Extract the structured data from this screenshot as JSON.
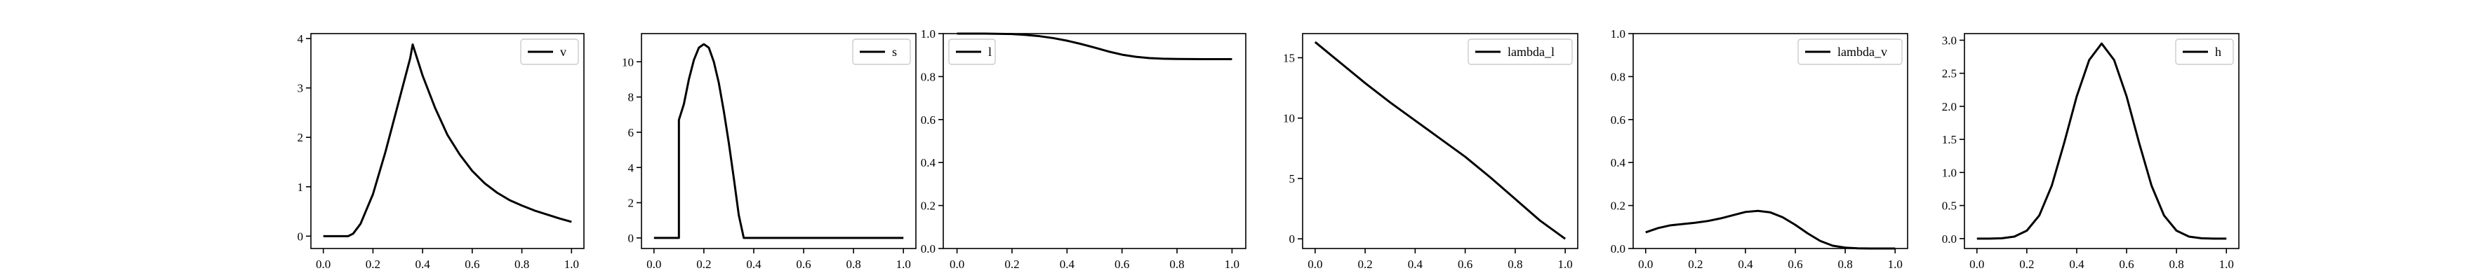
{
  "figure": {
    "background": "#ffffff",
    "line_color": "#000000"
  },
  "chart_data": [
    {
      "type": "line",
      "legend": "v",
      "legend_position": "upper right",
      "xlim": [
        -0.05,
        1.05
      ],
      "ylim": [
        -0.25,
        4.1
      ],
      "xticks": [
        0.0,
        0.2,
        0.4,
        0.6,
        0.8,
        1.0
      ],
      "xtick_labels": [
        "0.0",
        "0.2",
        "0.4",
        "0.6",
        "0.8",
        "1.0"
      ],
      "yticks": [
        0,
        1,
        2,
        3,
        4
      ],
      "ytick_labels": [
        "0",
        "1",
        "2",
        "3",
        "4"
      ],
      "x": [
        0.0,
        0.05,
        0.1,
        0.12,
        0.15,
        0.2,
        0.25,
        0.3,
        0.35,
        0.36,
        0.4,
        0.45,
        0.5,
        0.55,
        0.6,
        0.65,
        0.7,
        0.75,
        0.8,
        0.85,
        0.9,
        0.95,
        1.0
      ],
      "y": [
        0.0,
        0.0,
        0.0,
        0.05,
        0.25,
        0.85,
        1.7,
        2.65,
        3.6,
        3.88,
        3.25,
        2.6,
        2.05,
        1.65,
        1.32,
        1.07,
        0.88,
        0.73,
        0.62,
        0.52,
        0.44,
        0.36,
        0.29
      ]
    },
    {
      "type": "line",
      "legend": "s",
      "legend_position": "upper right",
      "xlim": [
        -0.05,
        1.05
      ],
      "ylim": [
        -0.6,
        11.6
      ],
      "xticks": [
        0.0,
        0.2,
        0.4,
        0.6,
        0.8,
        1.0
      ],
      "xtick_labels": [
        "0.0",
        "0.2",
        "0.4",
        "0.6",
        "0.8",
        "1.0"
      ],
      "yticks": [
        0,
        2,
        4,
        6,
        8,
        10
      ],
      "ytick_labels": [
        "0",
        "2",
        "4",
        "6",
        "8",
        "10"
      ],
      "x": [
        0.0,
        0.1,
        0.1,
        0.12,
        0.14,
        0.16,
        0.18,
        0.2,
        0.22,
        0.24,
        0.26,
        0.28,
        0.3,
        0.32,
        0.34,
        0.36,
        0.38,
        0.5,
        0.7,
        1.0
      ],
      "y": [
        0.0,
        0.0,
        6.7,
        7.6,
        9.0,
        10.1,
        10.8,
        11.0,
        10.8,
        10.0,
        8.8,
        7.2,
        5.4,
        3.4,
        1.3,
        0.0,
        0.0,
        0.0,
        0.0,
        0.0
      ]
    },
    {
      "type": "line",
      "legend": "l",
      "legend_position": "upper left",
      "xlim": [
        -0.05,
        1.05
      ],
      "ylim": [
        0.0,
        1.0
      ],
      "xticks": [
        0.0,
        0.2,
        0.4,
        0.6,
        0.8,
        1.0
      ],
      "xtick_labels": [
        "0.0",
        "0.2",
        "0.4",
        "0.6",
        "0.8",
        "1.0"
      ],
      "yticks": [
        0.0,
        0.2,
        0.4,
        0.6,
        0.8,
        1.0
      ],
      "ytick_labels": [
        "0.0",
        "0.2",
        "0.4",
        "0.6",
        "0.8",
        "1.0"
      ],
      "x": [
        0.0,
        0.1,
        0.2,
        0.25,
        0.3,
        0.35,
        0.4,
        0.45,
        0.5,
        0.55,
        0.6,
        0.65,
        0.7,
        0.75,
        0.8,
        0.9,
        1.0
      ],
      "y": [
        1.0,
        1.0,
        0.998,
        0.994,
        0.988,
        0.979,
        0.967,
        0.952,
        0.935,
        0.917,
        0.902,
        0.892,
        0.886,
        0.883,
        0.882,
        0.881,
        0.881
      ]
    },
    {
      "type": "line",
      "legend": "lambda_l",
      "legend_position": "upper right",
      "xlim": [
        -0.05,
        1.05
      ],
      "ylim": [
        -0.8,
        17.0
      ],
      "xticks": [
        0.0,
        0.2,
        0.4,
        0.6,
        0.8,
        1.0
      ],
      "xtick_labels": [
        "0.0",
        "0.2",
        "0.4",
        "0.6",
        "0.8",
        "1.0"
      ],
      "yticks": [
        0,
        5,
        10,
        15
      ],
      "ytick_labels": [
        "0",
        "5",
        "10",
        "15"
      ],
      "x": [
        0.0,
        0.1,
        0.2,
        0.3,
        0.4,
        0.5,
        0.6,
        0.7,
        0.8,
        0.9,
        1.0
      ],
      "y": [
        16.3,
        14.6,
        12.9,
        11.3,
        9.8,
        8.3,
        6.8,
        5.1,
        3.3,
        1.5,
        0.0
      ]
    },
    {
      "type": "line",
      "legend": "lambda_v",
      "legend_position": "upper right",
      "xlim": [
        -0.05,
        1.05
      ],
      "ylim": [
        0.0,
        1.0
      ],
      "xticks": [
        0.0,
        0.2,
        0.4,
        0.6,
        0.8,
        1.0
      ],
      "xtick_labels": [
        "0.0",
        "0.2",
        "0.4",
        "0.6",
        "0.8",
        "1.0"
      ],
      "yticks": [
        0.0,
        0.2,
        0.4,
        0.6,
        0.8,
        1.0
      ],
      "ytick_labels": [
        "0.0",
        "0.2",
        "0.4",
        "0.6",
        "0.8",
        "1.0"
      ],
      "x": [
        0.0,
        0.05,
        0.1,
        0.15,
        0.2,
        0.25,
        0.3,
        0.35,
        0.4,
        0.45,
        0.5,
        0.55,
        0.6,
        0.65,
        0.7,
        0.75,
        0.8,
        0.85,
        0.9,
        0.95,
        1.0
      ],
      "y": [
        0.075,
        0.095,
        0.108,
        0.114,
        0.12,
        0.128,
        0.14,
        0.155,
        0.17,
        0.175,
        0.168,
        0.145,
        0.11,
        0.07,
        0.035,
        0.013,
        0.004,
        0.001,
        0.0,
        0.0,
        0.0
      ]
    },
    {
      "type": "line",
      "legend": "h",
      "legend_position": "upper right",
      "xlim": [
        -0.05,
        1.05
      ],
      "ylim": [
        -0.15,
        3.1
      ],
      "xticks": [
        0.0,
        0.2,
        0.4,
        0.6,
        0.8,
        1.0
      ],
      "xtick_labels": [
        "0.0",
        "0.2",
        "0.4",
        "0.6",
        "0.8",
        "1.0"
      ],
      "yticks": [
        0.0,
        0.5,
        1.0,
        1.5,
        2.0,
        2.5,
        3.0
      ],
      "ytick_labels": [
        "0.0",
        "0.5",
        "1.0",
        "1.5",
        "2.0",
        "2.5",
        "3.0"
      ],
      "x": [
        0.0,
        0.05,
        0.1,
        0.15,
        0.2,
        0.25,
        0.3,
        0.35,
        0.4,
        0.45,
        0.5,
        0.55,
        0.6,
        0.65,
        0.7,
        0.75,
        0.8,
        0.85,
        0.9,
        0.95,
        1.0
      ],
      "y": [
        0.0,
        0.0,
        0.005,
        0.03,
        0.12,
        0.35,
        0.8,
        1.45,
        2.15,
        2.7,
        2.95,
        2.7,
        2.15,
        1.45,
        0.8,
        0.35,
        0.12,
        0.03,
        0.005,
        0.0,
        0.0
      ]
    }
  ]
}
